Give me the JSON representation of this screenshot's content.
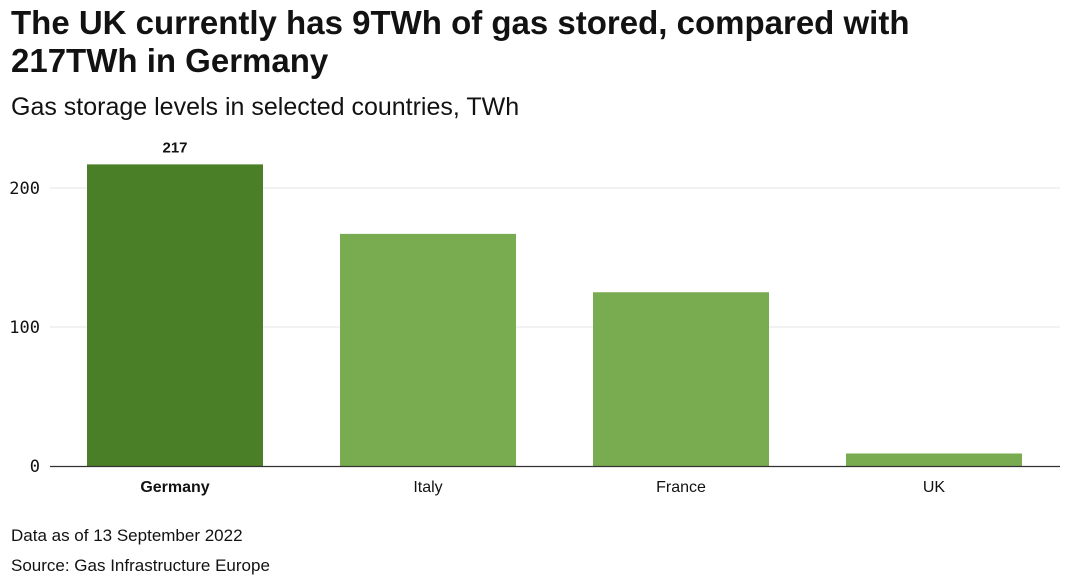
{
  "header": {
    "title": "The UK currently has 9TWh of gas stored, compared with 217TWh in Germany",
    "subtitle": "Gas storage levels in selected countries, TWh"
  },
  "footer": {
    "note": "Data as of 13 September 2022",
    "source": "Source: Gas Infrastructure Europe"
  },
  "colors": {
    "highlight": "#4b7f27",
    "bar": "#79ac50",
    "grid": "#e6e6e6",
    "axis": "#333333"
  },
  "chart_data": {
    "type": "bar",
    "title": "The UK currently has 9TWh of gas stored, compared with 217TWh in Germany",
    "subtitle": "Gas storage levels in selected countries, TWh",
    "categories": [
      "Germany",
      "Italy",
      "France",
      "UK"
    ],
    "values": [
      217,
      167,
      125,
      9
    ],
    "highlighted": [
      "Germany"
    ],
    "data_labels": {
      "Germany": "217"
    },
    "xlabel": "",
    "ylabel": "",
    "ylim": [
      0,
      200
    ],
    "yticks": [
      0,
      100,
      200
    ],
    "grid": true,
    "legend": "none"
  }
}
